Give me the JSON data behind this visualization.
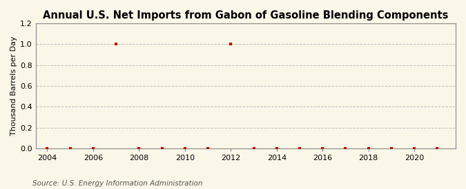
{
  "title": "Annual U.S. Net Imports from Gabon of Gasoline Blending Components",
  "ylabel": "Thousand Barrels per Day",
  "source": "Source: U.S. Energy Information Administration",
  "background_color": "#faf6e8",
  "xlim": [
    2003.5,
    2021.8
  ],
  "ylim": [
    0.0,
    1.2
  ],
  "yticks": [
    0.0,
    0.2,
    0.4,
    0.6,
    0.8,
    1.0,
    1.2
  ],
  "xticks": [
    2004,
    2006,
    2008,
    2010,
    2012,
    2014,
    2016,
    2018,
    2020
  ],
  "years": [
    2004,
    2005,
    2006,
    2007,
    2008,
    2009,
    2010,
    2011,
    2012,
    2013,
    2014,
    2015,
    2016,
    2017,
    2018,
    2019,
    2020,
    2021
  ],
  "values": [
    0.0,
    0.0,
    0.0,
    1.0,
    0.0,
    0.0,
    0.0,
    0.0,
    1.0,
    0.0,
    0.0,
    0.0,
    0.0,
    0.0,
    0.0,
    0.0,
    0.0,
    0.0
  ],
  "marker_color": "#cc0000",
  "marker_style": "s",
  "marker_size": 3,
  "grid_color": "#999999",
  "grid_style": "--",
  "grid_alpha": 0.6,
  "title_fontsize": 10.5,
  "label_fontsize": 8,
  "tick_fontsize": 8,
  "source_fontsize": 7.5,
  "spine_color": "#888888",
  "tick_color": "#888888"
}
